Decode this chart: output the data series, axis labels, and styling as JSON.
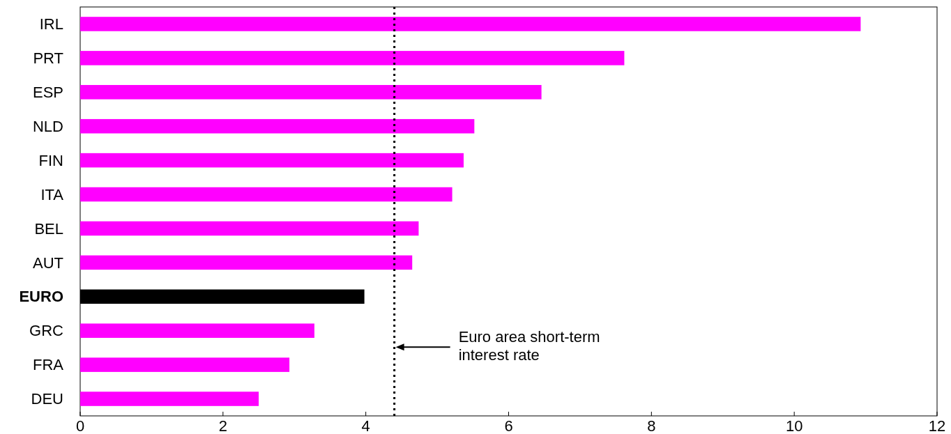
{
  "chart_data": {
    "type": "bar",
    "orientation": "horizontal",
    "categories": [
      "IRL",
      "PRT",
      "ESP",
      "NLD",
      "FIN",
      "ITA",
      "BEL",
      "AUT",
      "EURO",
      "GRC",
      "FRA",
      "DEU"
    ],
    "values": [
      10.93,
      7.62,
      6.46,
      5.52,
      5.37,
      5.21,
      4.74,
      4.65,
      3.98,
      3.28,
      2.93,
      2.5
    ],
    "color": "#ff00ff",
    "colors": [
      "#ff00ff",
      "#ff00ff",
      "#ff00ff",
      "#ff00ff",
      "#ff00ff",
      "#ff00ff",
      "#ff00ff",
      "#ff00ff",
      "#000000",
      "#ff00ff",
      "#ff00ff",
      "#ff00ff"
    ],
    "xlim": [
      0,
      12
    ],
    "xticks": [
      0,
      2,
      4,
      6,
      8,
      10,
      12
    ],
    "grid": false,
    "ref_lines": [
      {
        "axis": "x",
        "value": 4.4,
        "label": "Euro area short-term\ninterest rate",
        "color": "#000000",
        "line_style": "dotted"
      }
    ]
  }
}
